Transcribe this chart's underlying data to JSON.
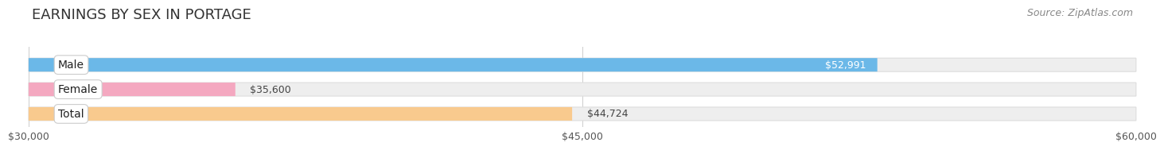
{
  "title": "EARNINGS BY SEX IN PORTAGE",
  "source": "Source: ZipAtlas.com",
  "categories": [
    "Male",
    "Female",
    "Total"
  ],
  "values": [
    52991,
    35600,
    44724
  ],
  "x_min": 30000,
  "x_max": 60000,
  "x_ticks": [
    30000,
    45000,
    60000
  ],
  "x_tick_labels": [
    "$30,000",
    "$45,000",
    "$60,000"
  ],
  "bar_colors": [
    "#6bb8e8",
    "#f4a8c0",
    "#f9ca8e"
  ],
  "bar_label_colors": [
    "#ffffff",
    "#555555",
    "#555555"
  ],
  "track_color": "#eeeeee",
  "track_edge_color": "#dddddd",
  "background_color": "#ffffff",
  "title_fontsize": 13,
  "source_fontsize": 9,
  "tick_fontsize": 9,
  "bar_label_fontsize": 9,
  "category_fontsize": 10
}
